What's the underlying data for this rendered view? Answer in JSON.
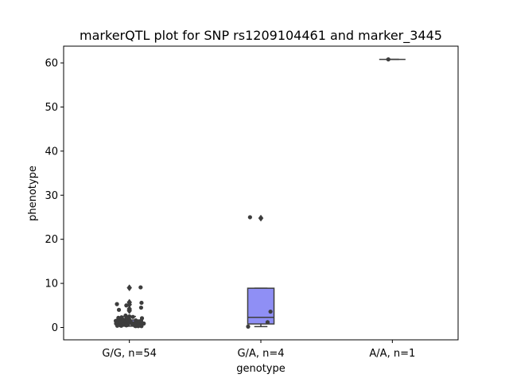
{
  "chart_data": {
    "type": "box",
    "title": "markerQTL plot for SNP rs1209104461 and marker_3445",
    "xlabel": "genotype",
    "ylabel": "phenotype",
    "ylim": [
      -2.8,
      63.8
    ],
    "yticks": [
      0,
      10,
      20,
      30,
      40,
      50,
      60
    ],
    "grid": false,
    "legend": "none",
    "categories": [
      "G/G, n=54",
      "G/A, n=4",
      "A/A, n=1"
    ],
    "box_color": "#8f8ff5",
    "line_color": "#3d3d3d",
    "point_color": "#3d3d3d",
    "groups": [
      {
        "label": "G/G, n=54",
        "q1": 0.8,
        "median": 1.1,
        "q3": 1.7,
        "whisker_low": 0.3,
        "whisker_high": 2.5,
        "fliers": [
          3.8,
          4.2,
          5.2,
          5.7,
          9.0
        ],
        "points": [
          9.1,
          5.6,
          5.3,
          5.0,
          4.5,
          4.0,
          2.7,
          2.5,
          2.4,
          2.3,
          2.2,
          2.1,
          2.0,
          1.9,
          1.8,
          1.8,
          1.7,
          1.6,
          1.6,
          1.5,
          1.5,
          1.4,
          1.4,
          1.3,
          1.3,
          1.2,
          1.2,
          1.1,
          1.1,
          1.0,
          1.0,
          1.0,
          0.9,
          0.9,
          0.9,
          0.8,
          0.8,
          0.8,
          0.7,
          0.7,
          0.7,
          0.6,
          0.6,
          0.6,
          0.5,
          0.5,
          0.5,
          0.5,
          0.4,
          0.4,
          0.4,
          0.3,
          0.3,
          0.3
        ]
      },
      {
        "label": "G/A, n=4",
        "q1": 0.8,
        "median": 2.3,
        "q3": 8.9,
        "whisker_low": 0.2,
        "whisker_high": 8.9,
        "fliers": [
          24.8
        ],
        "points": [
          25.0,
          3.6,
          1.2,
          0.2
        ]
      },
      {
        "label": "A/A, n=1",
        "q1": 60.8,
        "median": 60.8,
        "q3": 60.8,
        "whisker_low": 60.8,
        "whisker_high": 60.8,
        "fliers": [],
        "points": [
          60.8
        ]
      }
    ]
  }
}
